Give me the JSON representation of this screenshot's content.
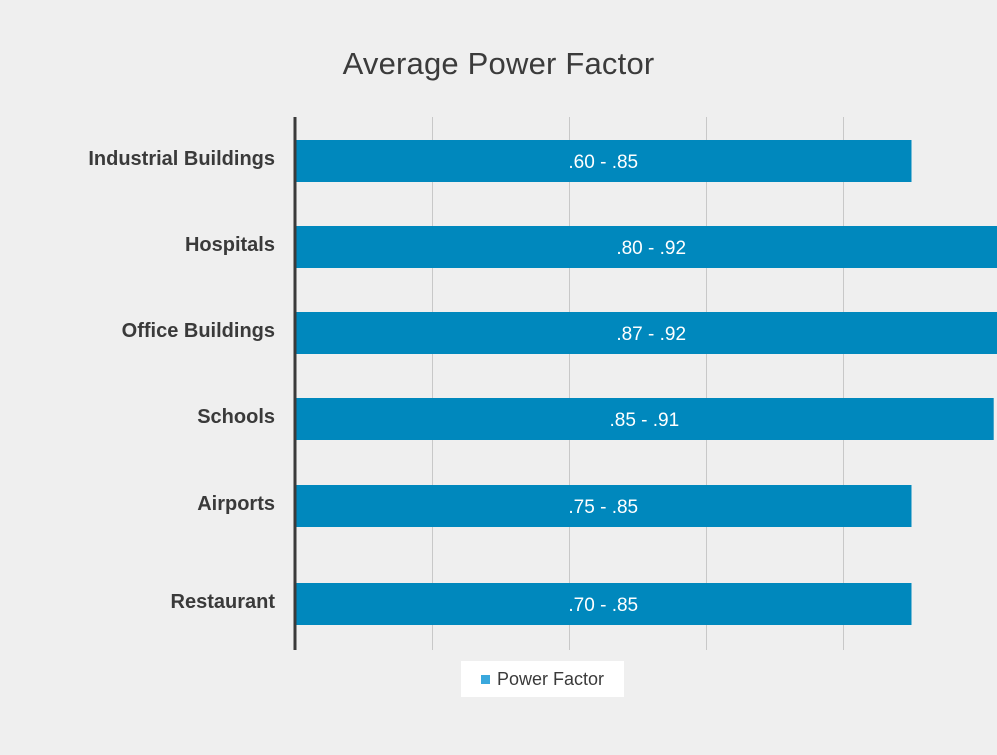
{
  "chart_data": {
    "type": "bar",
    "orientation": "horizontal",
    "title": "Average Power Factor",
    "categories": [
      "Industrial Buildings",
      "Hospitals",
      "Office Buildings",
      "Schools",
      "Airports",
      "Restaurant"
    ],
    "series": [
      {
        "name": "Power Factor",
        "values": [
          0.85,
          0.92,
          0.92,
          0.91,
          0.85,
          0.85
        ],
        "labels": [
          ".60 - .85",
          ".80 - .92",
          ".87 - .92",
          ".85 - .91",
          ".75 - .85",
          ".70 - .85"
        ]
      }
    ],
    "xlim": [
      0.4,
      1.0
    ],
    "xlabel": "",
    "ylabel": "",
    "grid": true,
    "tick_labels_visible": false,
    "legend": "bottom-center"
  },
  "colors": {
    "bar": "#0088bd",
    "legend_swatch": "#3aa8dd",
    "background": "#efefef",
    "grid": "#c8c8c8",
    "axis": "#3a3a3a"
  }
}
